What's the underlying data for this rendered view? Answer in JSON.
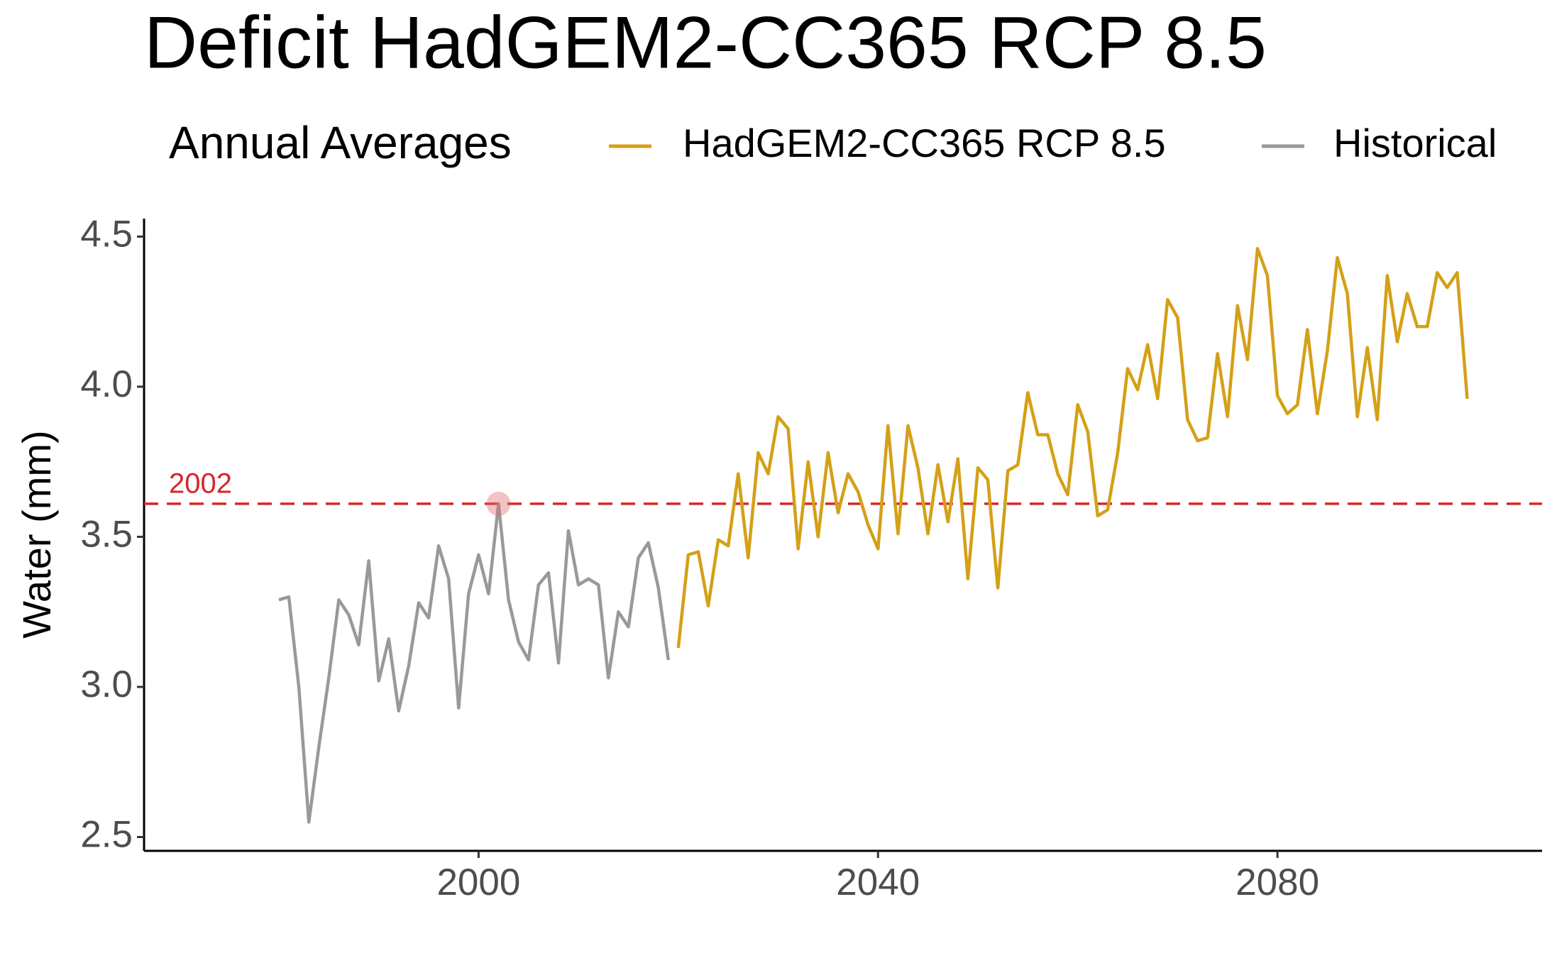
{
  "chart_data": {
    "type": "line",
    "title": "Deficit HadGEM2-CC365 RCP 8.5",
    "y_label": "Water (mm)",
    "legend_title": "Annual Averages",
    "legend_position": "top",
    "grid": false,
    "xlim": [
      1966.5,
      2106.5
    ],
    "xticks": [
      2000,
      2040,
      2080
    ],
    "ylim": [
      2.454,
      4.56
    ],
    "yticks": [
      {
        "value": 2.5,
        "label": "2.5"
      },
      {
        "value": 3,
        "label": "3.0"
      },
      {
        "value": 3.5,
        "label": "3.5"
      },
      {
        "value": 4,
        "label": "4.0"
      },
      {
        "value": 4.5,
        "label": "4.5"
      }
    ],
    "reference_line": {
      "value": 3.61,
      "label": "2002",
      "color": "#d62728"
    },
    "highlight_point": {
      "x": 2002,
      "y": 3.61,
      "color": "#e06666"
    },
    "series": [
      {
        "name": "HadGEM2-CC365 RCP 8.5",
        "color": "#d4a017",
        "x": [
          2020,
          2021,
          2022,
          2023,
          2024,
          2025,
          2026,
          2027,
          2028,
          2029,
          2030,
          2031,
          2032,
          2033,
          2034,
          2035,
          2036,
          2037,
          2038,
          2039,
          2040,
          2041,
          2042,
          2043,
          2044,
          2045,
          2046,
          2047,
          2048,
          2049,
          2050,
          2051,
          2052,
          2053,
          2054,
          2055,
          2056,
          2057,
          2058,
          2059,
          2060,
          2061,
          2062,
          2063,
          2064,
          2065,
          2066,
          2067,
          2068,
          2069,
          2070,
          2071,
          2072,
          2073,
          2074,
          2075,
          2076,
          2077,
          2078,
          2079,
          2080,
          2081,
          2082,
          2083,
          2084,
          2085,
          2086,
          2087,
          2088,
          2089,
          2090,
          2091,
          2092,
          2093,
          2094,
          2095,
          2096,
          2097,
          2098,
          2099
        ],
        "values": [
          3.13,
          3.44,
          3.45,
          3.27,
          3.49,
          3.47,
          3.71,
          3.43,
          3.78,
          3.71,
          3.9,
          3.86,
          3.46,
          3.75,
          3.5,
          3.78,
          3.58,
          3.71,
          3.65,
          3.54,
          3.46,
          3.87,
          3.51,
          3.87,
          3.73,
          3.51,
          3.74,
          3.55,
          3.76,
          3.36,
          3.73,
          3.69,
          3.33,
          3.72,
          3.74,
          3.98,
          3.84,
          3.84,
          3.71,
          3.64,
          3.94,
          3.85,
          3.57,
          3.59,
          3.78,
          4.06,
          3.99,
          4.14,
          3.96,
          4.29,
          4.23,
          3.89,
          3.82,
          3.83,
          4.11,
          3.9,
          4.27,
          4.09,
          4.46,
          4.37,
          3.97,
          3.91,
          3.94,
          4.19,
          3.91,
          4.12,
          4.43,
          4.31,
          3.9,
          4.13,
          3.89,
          4.37,
          4.15,
          4.31,
          4.2,
          4.2,
          4.38,
          4.33,
          4.38,
          3.96
        ]
      },
      {
        "name": "Historical",
        "color": "#999999",
        "x": [
          1980,
          1981,
          1982,
          1983,
          1984,
          1985,
          1986,
          1987,
          1988,
          1989,
          1990,
          1991,
          1992,
          1993,
          1994,
          1995,
          1996,
          1997,
          1998,
          1999,
          2000,
          2001,
          2002,
          2003,
          2004,
          2005,
          2006,
          2007,
          2008,
          2009,
          2010,
          2011,
          2012,
          2013,
          2014,
          2015,
          2016,
          2017,
          2018,
          2019
        ],
        "values": [
          3.29,
          3.3,
          3.0,
          2.55,
          2.8,
          3.03,
          3.29,
          3.24,
          3.14,
          3.42,
          3.02,
          3.16,
          2.92,
          3.07,
          3.28,
          3.23,
          3.47,
          3.36,
          2.93,
          3.31,
          3.44,
          3.31,
          3.61,
          3.29,
          3.15,
          3.09,
          3.34,
          3.38,
          3.08,
          3.52,
          3.34,
          3.36,
          3.34,
          3.03,
          3.25,
          3.2,
          3.43,
          3.48,
          3.33,
          3.09
        ]
      }
    ]
  }
}
